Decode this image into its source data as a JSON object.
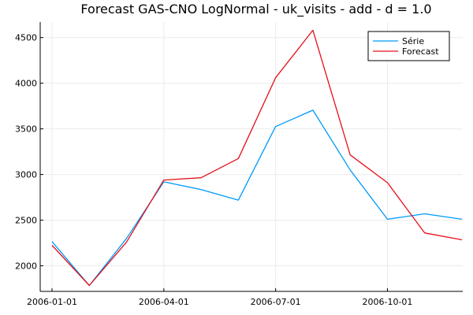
{
  "chart_data": {
    "type": "line",
    "title": "Forecast GAS-CNO LogNormal - uk_visits - add - d = 1.0",
    "xlabel": "",
    "ylabel": "",
    "grid": true,
    "legend_position": "top-right",
    "x": [
      "2006-01-01",
      "2006-02-01",
      "2006-03-01",
      "2006-04-01",
      "2006-05-01",
      "2006-06-01",
      "2006-07-01",
      "2006-08-01",
      "2006-09-01",
      "2006-10-01",
      "2006-11-01",
      "2006-12-01"
    ],
    "x_ticks": [
      "2006-01-01",
      "2006-04-01",
      "2006-07-01",
      "2006-10-01"
    ],
    "y_ticks": [
      2000,
      2500,
      3000,
      3500,
      4000,
      4500
    ],
    "ylim": [
      1720,
      4670
    ],
    "series": [
      {
        "name": "Série",
        "color": "#009af9",
        "values": [
          2265,
          1785,
          2300,
          2920,
          2835,
          2720,
          3525,
          3705,
          3050,
          2510,
          2570,
          2510
        ]
      },
      {
        "name": "Forecast",
        "color": "#e5101a",
        "values": [
          2225,
          1785,
          2260,
          2940,
          2965,
          3175,
          4060,
          4580,
          3215,
          2910,
          2360,
          2285
        ]
      }
    ]
  }
}
